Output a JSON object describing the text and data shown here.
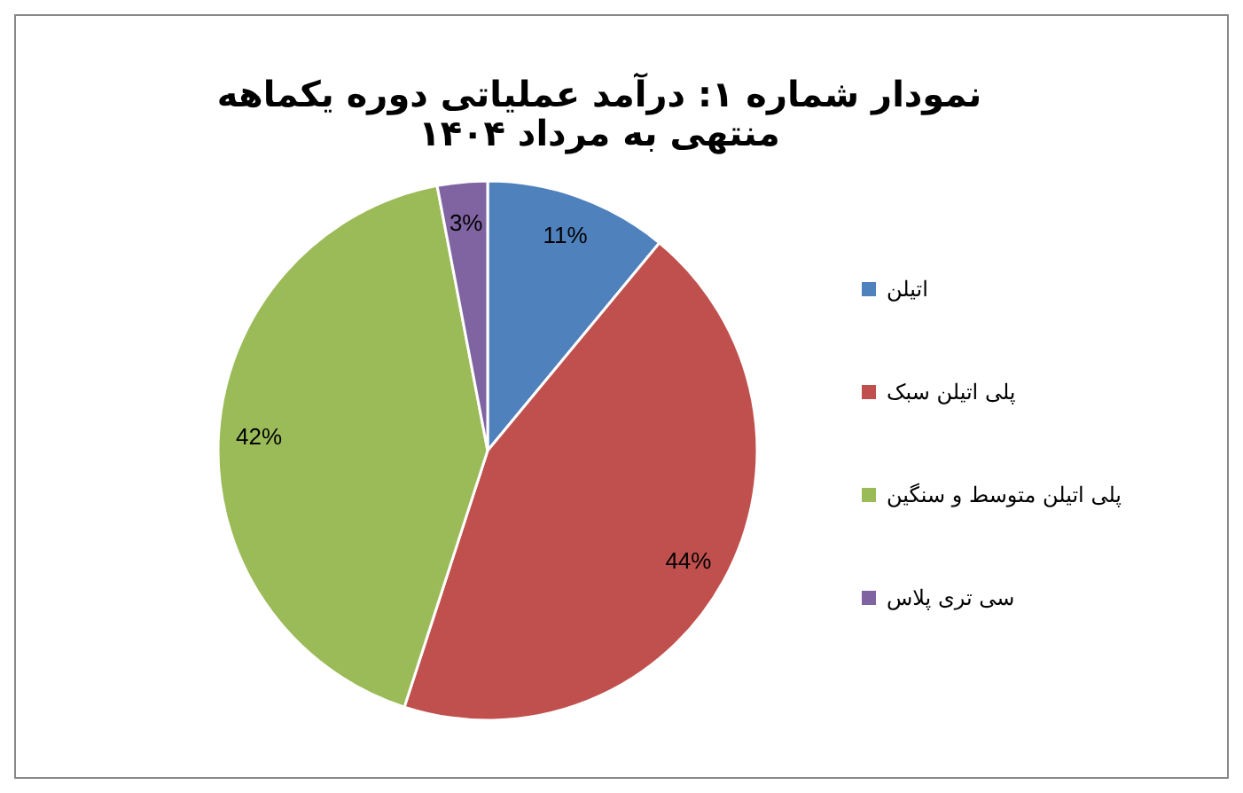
{
  "chart_data": {
    "type": "pie",
    "title": "نمودار شماره ۱: درآمد عملیاتی دوره یکماهه منتهی به مرداد ۱۴۰۴",
    "categories": [
      "اتیلن",
      "پلی اتیلن سبک",
      "پلی اتیلن متوسط و سنگین",
      "سی تری پلاس"
    ],
    "values": [
      11,
      44,
      42,
      3
    ],
    "colors": [
      "#4f81bd",
      "#c0504d",
      "#9bbb59",
      "#8064a2"
    ],
    "value_labels": [
      "11%",
      "44%",
      "42%",
      "3%"
    ],
    "legend": "right"
  }
}
